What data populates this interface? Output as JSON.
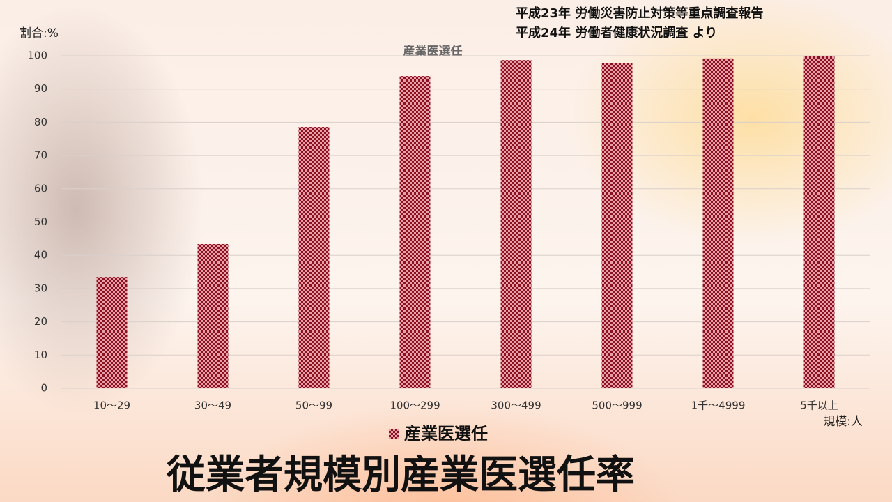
{
  "heading": "従業者規模別産業医選任率",
  "source": [
    "平成23年 労働災害防止対策等重点調査報告",
    "平成24年 労働者健康状況調査 より"
  ],
  "chart_data": {
    "type": "bar",
    "title": "産業医選任",
    "y_label": "割合:%",
    "x_label": "規模:人",
    "categories": [
      "10～29",
      "30～49",
      "50～99",
      "100～299",
      "300～499",
      "500～999",
      "1千～4999",
      "5千以上"
    ],
    "series": [
      {
        "name": "産業医選任",
        "color": "#8b1020",
        "values": [
          33.3,
          43.4,
          78.6,
          93.9,
          98.7,
          97.9,
          99.2,
          100
        ]
      }
    ],
    "ylim": [
      0,
      100
    ],
    "yticks": [
      0,
      10,
      20,
      30,
      40,
      50,
      60,
      70,
      80,
      90,
      100
    ],
    "grid": true,
    "legend": "bottom"
  }
}
